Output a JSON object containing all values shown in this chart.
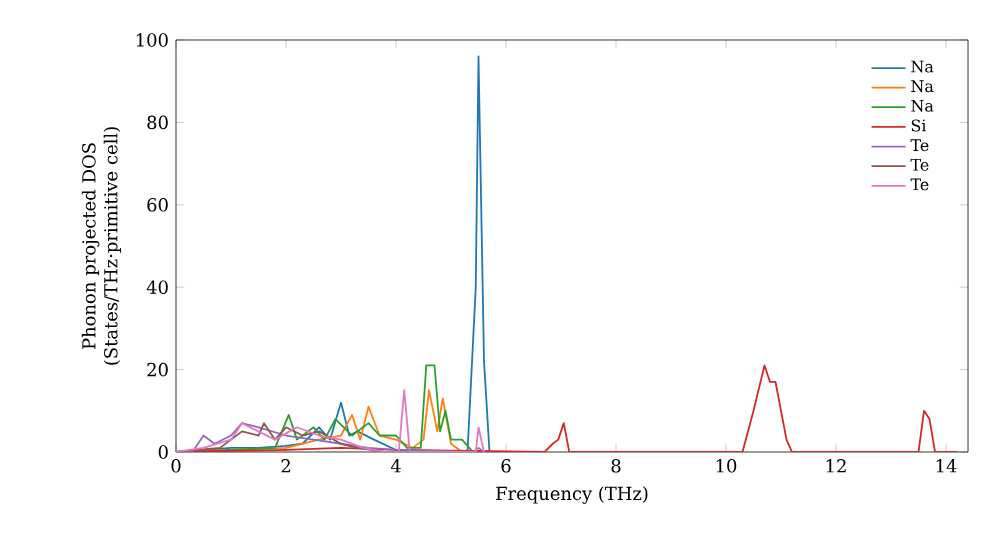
{
  "chart_data": {
    "type": "line",
    "xlabel": "Frequency (THz)",
    "ylabel": "Phonon projected DOS (States/THz·primitive cell)",
    "xlim": [
      0,
      14.4
    ],
    "ylim": [
      0,
      100
    ],
    "xticks": [
      0,
      2,
      4,
      6,
      8,
      10,
      12,
      14
    ],
    "yticks": [
      0,
      20,
      40,
      60,
      80,
      100
    ],
    "legend": "top right",
    "grid": false,
    "series": [
      {
        "name": "Na",
        "color": "#1f77b4",
        "x": [
          0,
          0.5,
          1.0,
          1.5,
          2.0,
          2.3,
          2.6,
          2.8,
          3.0,
          3.15,
          3.3,
          3.6,
          4.0,
          4.5,
          5.3,
          5.45,
          5.5,
          5.6,
          5.7
        ],
        "values": [
          0,
          0.5,
          1,
          1,
          1.5,
          2,
          6,
          3,
          12,
          4,
          5,
          3,
          0.5,
          0.3,
          0,
          40,
          96,
          22,
          0
        ]
      },
      {
        "name": "Na",
        "color": "#ff7f0e",
        "x": [
          0,
          1.0,
          2.0,
          2.6,
          3.0,
          3.2,
          3.35,
          3.5,
          3.7,
          4.0,
          4.3,
          4.5,
          4.6,
          4.75,
          4.85,
          5.0,
          5.2
        ],
        "values": [
          0,
          0.5,
          1,
          3,
          4,
          9,
          3,
          11,
          4,
          3,
          1,
          3,
          15,
          5,
          13,
          2,
          0
        ]
      },
      {
        "name": "Na",
        "color": "#2ca02c",
        "x": [
          0,
          1.0,
          1.8,
          2.05,
          2.2,
          2.5,
          2.7,
          2.9,
          3.2,
          3.5,
          3.7,
          4.0,
          4.2,
          4.45,
          4.55,
          4.7,
          4.8,
          4.9,
          5.0,
          5.2,
          5.4
        ],
        "values": [
          0,
          0.5,
          1,
          9,
          3,
          6,
          3,
          8,
          4,
          7,
          4,
          4,
          1,
          1,
          21,
          21,
          5,
          10,
          3,
          3,
          0
        ]
      },
      {
        "name": "Si",
        "color": "#d62728",
        "x": [
          0,
          2.0,
          3.0,
          4.0,
          6.7,
          6.85,
          6.95,
          7.05,
          7.15,
          10.3,
          10.5,
          10.7,
          10.8,
          10.9,
          11.1,
          11.2,
          13.5,
          13.6,
          13.7,
          13.8,
          14.2
        ],
        "values": [
          0,
          0.5,
          1,
          0.5,
          0,
          2,
          3,
          7,
          0,
          0,
          10,
          21,
          17,
          17,
          3,
          0,
          0,
          10,
          8,
          0,
          0
        ]
      },
      {
        "name": "Te",
        "color": "#9467bd",
        "x": [
          0,
          0.3,
          0.5,
          0.7,
          1.0,
          1.2,
          1.5,
          2.0,
          2.5,
          3.0,
          3.5,
          4.0,
          5.4,
          5.5,
          5.6
        ],
        "values": [
          0,
          0,
          4,
          2,
          4,
          7,
          6,
          4,
          3,
          2,
          1,
          0.5,
          0,
          1,
          0
        ]
      },
      {
        "name": "Te",
        "color": "#8c564b",
        "x": [
          0,
          0.8,
          1.2,
          1.5,
          1.6,
          1.8,
          2.0,
          2.3,
          2.6,
          3.0,
          3.3,
          3.8
        ],
        "values": [
          0,
          1,
          5,
          4,
          7,
          3,
          6,
          4,
          5,
          2,
          1,
          0
        ]
      },
      {
        "name": "Te",
        "color": "#e377c2",
        "x": [
          0,
          0.5,
          1.0,
          1.2,
          1.5,
          1.8,
          2.2,
          2.6,
          3.0,
          3.4,
          3.8,
          4.05,
          4.15,
          4.25,
          5.45,
          5.5,
          5.6
        ],
        "values": [
          0,
          1,
          3,
          7,
          5,
          3,
          6,
          4,
          3,
          1,
          0,
          0,
          15,
          0,
          0,
          6,
          0
        ]
      }
    ]
  }
}
